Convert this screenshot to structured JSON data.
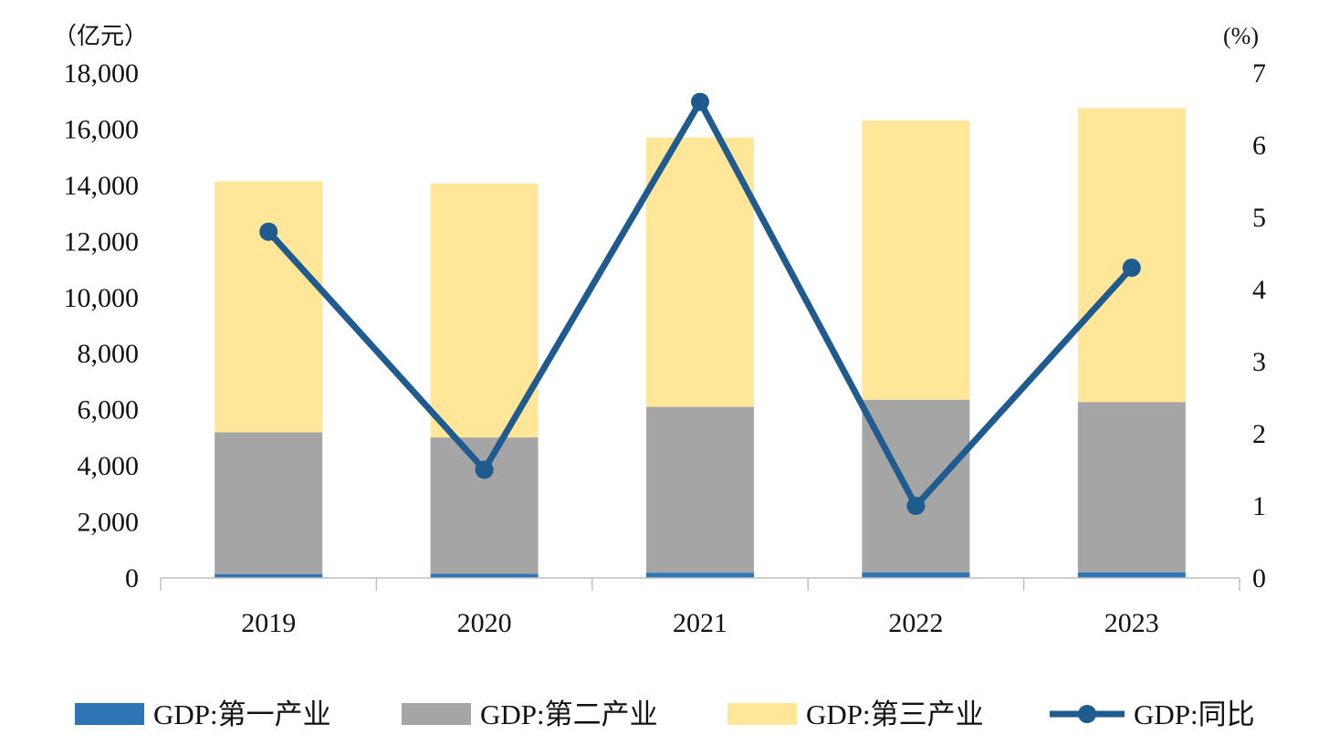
{
  "chart_data": {
    "type": "bar",
    "stacked": true,
    "categories": [
      "2019",
      "2020",
      "2021",
      "2022",
      "2023"
    ],
    "left_axis": {
      "unit": "（亿元）",
      "ylim": [
        0,
        18000
      ],
      "ticks": [
        "0",
        "2,000",
        "4,000",
        "6,000",
        "8,000",
        "10,000",
        "12,000",
        "14,000",
        "16,000",
        "18,000"
      ],
      "tick_values": [
        0,
        2000,
        4000,
        6000,
        8000,
        10000,
        12000,
        14000,
        16000,
        18000
      ]
    },
    "right_axis": {
      "unit": "(%)",
      "ylim": [
        0,
        7
      ],
      "ticks": [
        "0",
        "1",
        "2",
        "3",
        "4",
        "5",
        "6",
        "7"
      ],
      "tick_values": [
        0,
        1,
        2,
        3,
        4,
        5,
        6,
        7
      ]
    },
    "series": [
      {
        "name": "GDP:第一产业",
        "type": "bar",
        "axis": "left",
        "color": "#2e75b6",
        "values": [
          140,
          150,
          190,
          195,
          200
        ]
      },
      {
        "name": "GDP:第二产业",
        "type": "bar",
        "axis": "left",
        "color": "#a5a5a5",
        "values": [
          5050,
          4860,
          5910,
          6160,
          6070
        ]
      },
      {
        "name": "GDP:第三产业",
        "type": "bar",
        "axis": "left",
        "color": "#ffe699",
        "values": [
          8950,
          9050,
          9600,
          9950,
          10480
        ]
      },
      {
        "name": "GDP:同比",
        "type": "line",
        "axis": "right",
        "color": "#1f5b8e",
        "values": [
          4.8,
          1.5,
          6.6,
          1.0,
          4.3
        ]
      }
    ],
    "grid": false,
    "legend_position": "bottom"
  }
}
